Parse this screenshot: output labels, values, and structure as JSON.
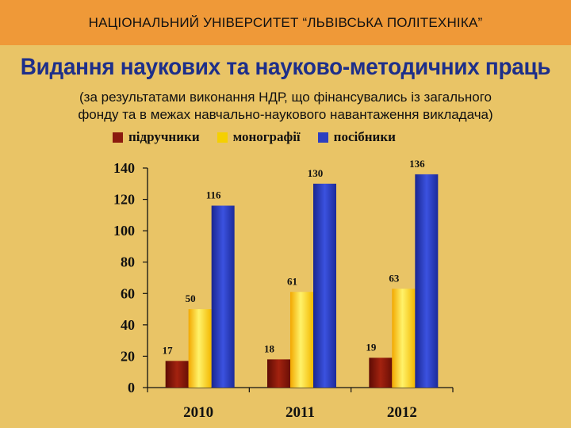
{
  "header": {
    "university": "НАЦІОНАЛЬНИЙ УНІВЕРСИТЕТ “ЛЬВІВСЬКА ПОЛІТЕХНІКА”"
  },
  "chart_data": {
    "type": "bar",
    "title": "Видання наукових та науково-методичних праць",
    "subtitle_lines": [
      "(за результатами виконання НДР, що фінансувались із загального",
      "фонду та в межах навчально-наукового навантаження викладача)"
    ],
    "categories": [
      "2010",
      "2011",
      "2012"
    ],
    "series": [
      {
        "name": "підручники",
        "values": [
          17,
          18,
          19
        ],
        "color": "#8b1a0e"
      },
      {
        "name": "монографії",
        "values": [
          50,
          61,
          63
        ],
        "color": "#f5d000"
      },
      {
        "name": "посібники",
        "values": [
          116,
          130,
          136
        ],
        "color": "#2d3fc0"
      }
    ],
    "yticks": [
      "0",
      "20",
      "40",
      "60",
      "80",
      "100",
      "120",
      "140"
    ],
    "ylim": [
      0,
      140
    ],
    "xlabel": "",
    "ylabel": "",
    "legend_position": "top",
    "grid": false
  }
}
